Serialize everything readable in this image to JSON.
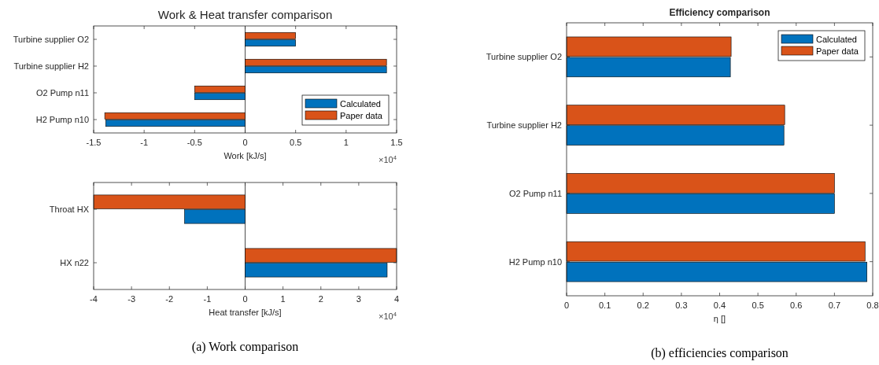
{
  "chart_data": [
    {
      "type": "bar",
      "orientation": "horizontal",
      "title": "Work & Heat transfer comparison",
      "xlabel": "Work [kJ/s]",
      "categories": [
        "Turbine supplier O2",
        "Turbine supplier H2",
        "O2 Pump n11",
        "H2 Pump n10"
      ],
      "series": [
        {
          "name": "Calculated",
          "color": "#0072bd",
          "values": [
            0.5,
            1.4,
            -0.5,
            -1.38
          ]
        },
        {
          "name": "Paper data",
          "color": "#d95319",
          "values": [
            0.5,
            1.4,
            -0.5,
            -1.39
          ]
        }
      ],
      "xlim": [
        -1.5,
        1.5
      ],
      "xticks": [
        -1.5,
        -1,
        -0.5,
        0,
        0.5,
        1,
        1.5
      ],
      "legend": "bottom right",
      "grid": false,
      "ref_lines": [
        {
          "axis": "x",
          "value": 0
        }
      ],
      "annotations": [
        "×10$^{4}$"
      ]
    },
    {
      "type": "bar",
      "orientation": "horizontal",
      "xlabel": "Heat transfer [kJ/s]",
      "categories": [
        "Throat HX",
        "HX n22"
      ],
      "series": [
        {
          "color": "#0072bd",
          "values": [
            -1.6,
            3.75
          ]
        },
        {
          "color": "#d95319",
          "values": [
            -4,
            4
          ]
        }
      ],
      "xlim": [
        -4,
        4
      ],
      "xticks": [
        -4,
        -3,
        -2,
        -1,
        0,
        1,
        2,
        3,
        4
      ],
      "grid": false,
      "ref_lines": [
        {
          "axis": "x",
          "value": 0
        }
      ],
      "annotations": [
        "×10$^{4}$",
        "(a) Work comparison"
      ]
    },
    {
      "type": "bar",
      "orientation": "horizontal",
      "title": "Efficiency comparison",
      "xlabel": "η []",
      "categories": [
        "Turbine supplier O2",
        "Turbine supplier H2",
        "O2 Pump n11",
        "H2 Pump n10"
      ],
      "series": [
        {
          "name": "Calculated",
          "color": "#0072bd",
          "values": [
            0.428,
            0.568,
            0.7,
            0.785
          ]
        },
        {
          "name": "Paper data",
          "color": "#d95319",
          "values": [
            0.43,
            0.57,
            0.7,
            0.78
          ]
        }
      ],
      "xlim": [
        0,
        0.8
      ],
      "xticks": [
        0,
        0.1,
        0.2,
        0.3,
        0.4,
        0.5,
        0.6,
        0.7,
        0.8
      ],
      "legend": "top right",
      "grid": false,
      "annotations": [
        "(b) efficiencies comparison"
      ]
    }
  ]
}
